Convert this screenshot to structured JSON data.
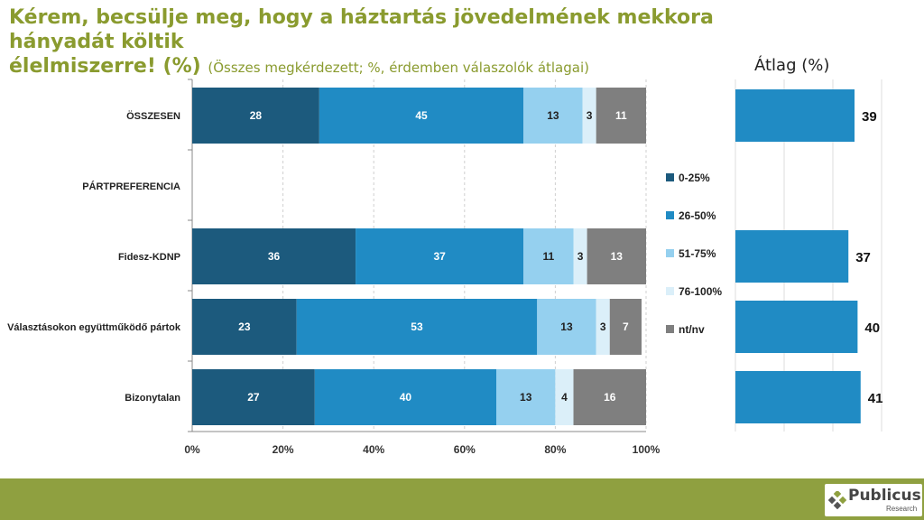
{
  "title": {
    "main": "Kérem, becsülje meg, hogy a háztartás jövedelmének mekkora hányadát költik élelmiszerre! (%)",
    "line1": "Kérem, becsülje meg, hogy a háztartás jövedelmének mekkora hányadát költik",
    "line2": "élelmiszerre! (%)",
    "subtitle": "(Összes megkérdezett; %, érdemben válaszolók átlagai)"
  },
  "avg_title": "Átlag (%)",
  "logo": {
    "name": "Publicus",
    "tagline": "Research"
  },
  "colors": {
    "s1": "#1c5a7d",
    "s2": "#208bc4",
    "s3": "#95d0ef",
    "s4": "#dbeff9",
    "s5": "#7f7f7f",
    "avg": "#208bc4",
    "grid": "#cfcfcf"
  },
  "chart_data": [
    {
      "type": "bar",
      "orientation": "horizontal",
      "stacked": true,
      "categories": [
        "ÖSSZESEN",
        "PÁRTPREFERENCIA",
        "Fidesz-KDNP",
        "Választásokon együttműködő pártok",
        "Bizonytalan"
      ],
      "series": [
        {
          "name": "0-25%",
          "values": [
            28,
            null,
            36,
            23,
            27
          ]
        },
        {
          "name": "26-50%",
          "values": [
            45,
            null,
            37,
            53,
            40
          ]
        },
        {
          "name": "51-75%",
          "values": [
            13,
            null,
            11,
            13,
            13
          ]
        },
        {
          "name": "76-100%",
          "values": [
            3,
            null,
            3,
            3,
            4
          ]
        },
        {
          "name": "nt/nv",
          "values": [
            11,
            null,
            13,
            7,
            16
          ]
        }
      ],
      "xlim": [
        0,
        100
      ],
      "xticks": [
        "0%",
        "20%",
        "40%",
        "60%",
        "80%",
        "100%"
      ],
      "legend": "right"
    },
    {
      "type": "bar",
      "orientation": "horizontal",
      "title": "Átlag (%)",
      "categories": [
        "ÖSSZESEN",
        "PÁRTPREFERENCIA",
        "Fidesz-KDNP",
        "Választásokon együttműködő pártok",
        "Bizonytalan"
      ],
      "values": [
        39,
        null,
        37,
        40,
        41
      ],
      "xlim": [
        0,
        65
      ]
    }
  ]
}
